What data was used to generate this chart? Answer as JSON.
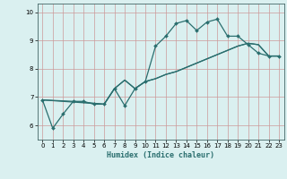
{
  "xlabel": "Humidex (Indice chaleur)",
  "bg_color": "#daf0f0",
  "grid_color": "#cc9999",
  "line_color": "#2a6e6e",
  "xlim": [
    -0.5,
    23.5
  ],
  "ylim": [
    5.5,
    10.3
  ],
  "yticks": [
    6,
    7,
    8,
    9,
    10
  ],
  "xticks": [
    0,
    1,
    2,
    3,
    4,
    5,
    6,
    7,
    8,
    9,
    10,
    11,
    12,
    13,
    14,
    15,
    16,
    17,
    18,
    19,
    20,
    21,
    22,
    23
  ],
  "line1_x": [
    0,
    1,
    2,
    3,
    4,
    5,
    6,
    7,
    8,
    9,
    10,
    11,
    12,
    13,
    14,
    15,
    16,
    17,
    18,
    19,
    20,
    21,
    22,
    23
  ],
  "line1_y": [
    6.9,
    5.9,
    6.4,
    6.85,
    6.85,
    6.75,
    6.75,
    7.3,
    6.7,
    7.3,
    7.55,
    8.8,
    9.15,
    9.6,
    9.7,
    9.35,
    9.65,
    9.75,
    9.15,
    9.15,
    8.85,
    8.55,
    8.45,
    8.45
  ],
  "line2_x": [
    0,
    3,
    6,
    7,
    8,
    9,
    10,
    11,
    12,
    13,
    14,
    15,
    16,
    17,
    18,
    19,
    20,
    21,
    22,
    23
  ],
  "line2_y": [
    6.9,
    6.85,
    6.75,
    7.3,
    7.6,
    7.3,
    7.55,
    7.65,
    7.8,
    7.9,
    8.05,
    8.2,
    8.35,
    8.5,
    8.65,
    8.8,
    8.9,
    8.85,
    8.45,
    8.45
  ],
  "line3_x": [
    0,
    6,
    7,
    8,
    9,
    10,
    11,
    12,
    13,
    14,
    15,
    16,
    17,
    18,
    19,
    20,
    21,
    22,
    23
  ],
  "line3_y": [
    6.9,
    6.75,
    7.3,
    7.6,
    7.3,
    7.55,
    7.65,
    7.8,
    7.9,
    8.05,
    8.2,
    8.35,
    8.5,
    8.65,
    8.8,
    8.9,
    8.85,
    8.45,
    8.45
  ]
}
